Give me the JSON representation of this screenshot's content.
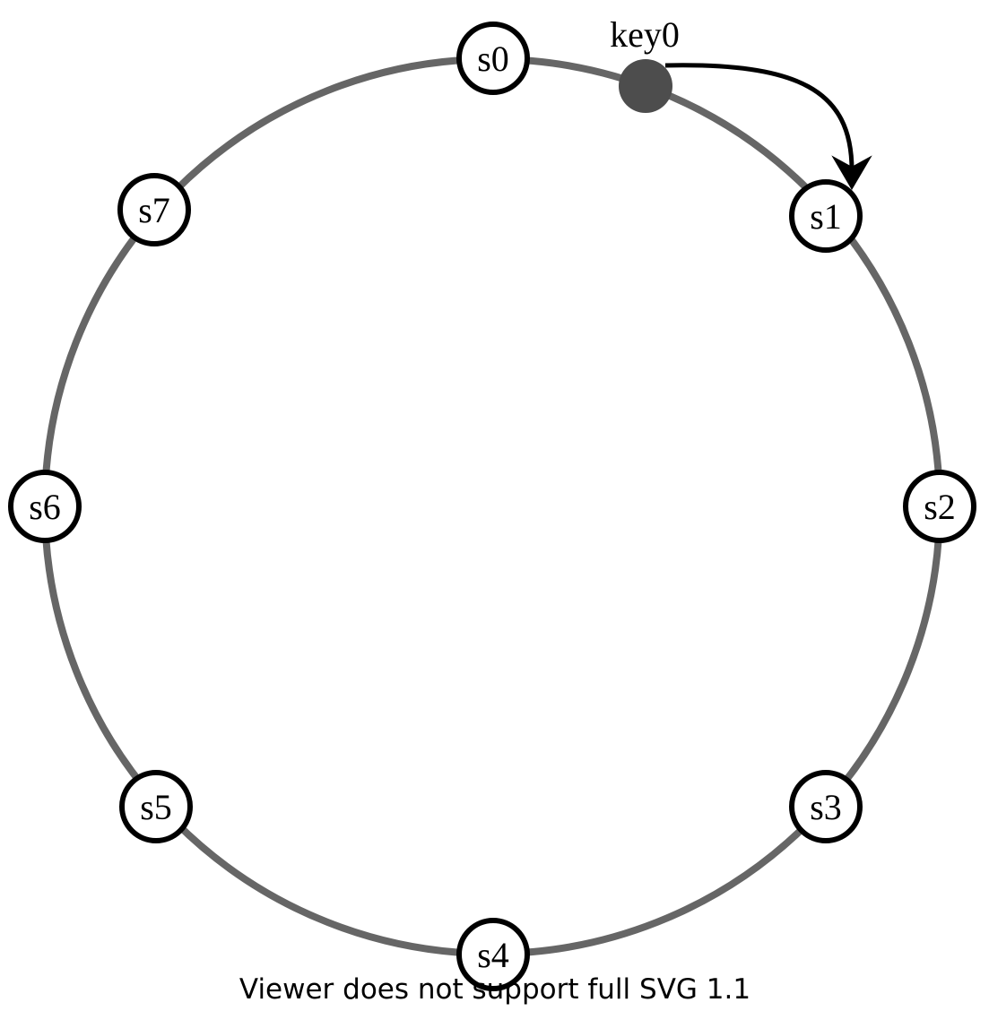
{
  "diagram": {
    "colors": {
      "ring": "#666666",
      "node_stroke": "#000000",
      "node_fill": "#ffffff",
      "key_dot": "#4d4d4d",
      "arrow": "#000000"
    },
    "servers": [
      {
        "id": "s0",
        "label": "s0"
      },
      {
        "id": "s1",
        "label": "s1"
      },
      {
        "id": "s2",
        "label": "s2"
      },
      {
        "id": "s3",
        "label": "s3"
      },
      {
        "id": "s4",
        "label": "s4"
      },
      {
        "id": "s5",
        "label": "s5"
      },
      {
        "id": "s6",
        "label": "s6"
      },
      {
        "id": "s7",
        "label": "s7"
      }
    ],
    "key": {
      "label": "key0",
      "maps_to": "s1"
    }
  },
  "footer": {
    "notice": "Viewer does not support full SVG 1.1"
  }
}
